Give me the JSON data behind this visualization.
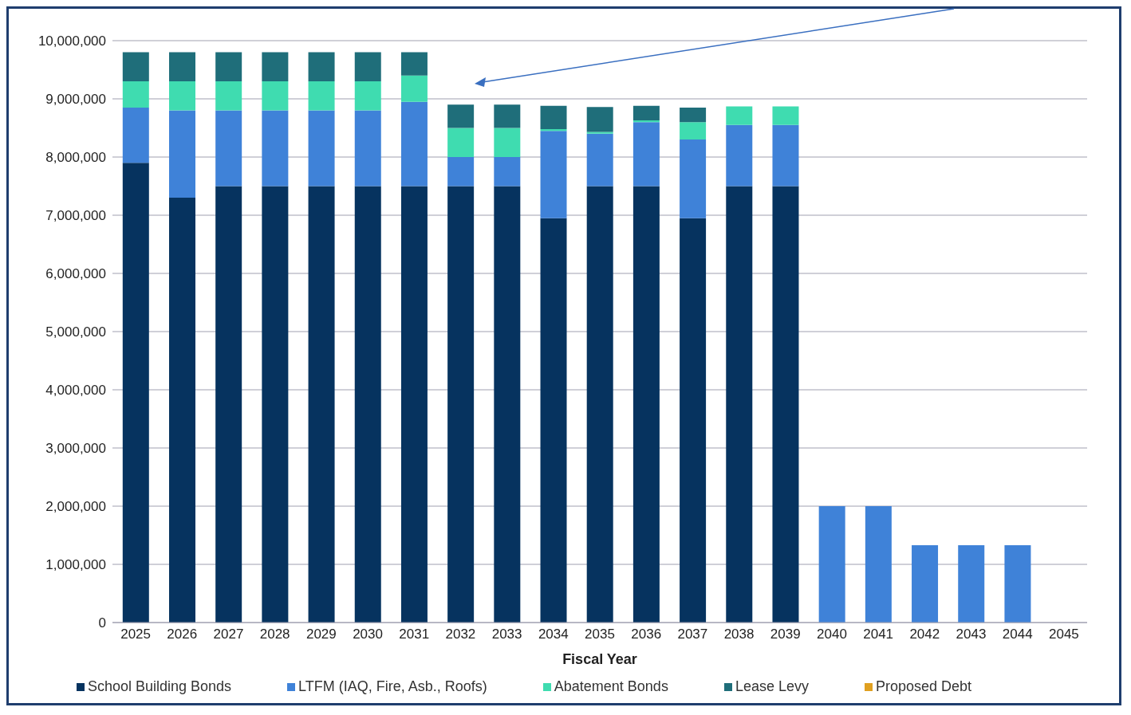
{
  "chart_data": {
    "type": "bar",
    "stacked": true,
    "xlabel": "Fiscal Year",
    "categories": [
      "2025",
      "2026",
      "2027",
      "2028",
      "2029",
      "2030",
      "2031",
      "2032",
      "2033",
      "2034",
      "2035",
      "2036",
      "2037",
      "2038",
      "2039",
      "2040",
      "2041",
      "2042",
      "2043",
      "2044",
      "2045"
    ],
    "series": [
      {
        "name": "School Building Bonds",
        "color": "#06335f",
        "values": [
          7900000,
          7300000,
          7500000,
          7500000,
          7500000,
          7500000,
          7500000,
          7500000,
          7500000,
          6950000,
          7500000,
          7500000,
          6950000,
          7500000,
          7500000,
          0,
          0,
          0,
          0,
          0,
          0
        ]
      },
      {
        "name": "LTFM (IAQ, Fire, Asb., Roofs)",
        "color": "#3f82d8",
        "values": [
          950000,
          1500000,
          1300000,
          1300000,
          1300000,
          1300000,
          1450000,
          500000,
          500000,
          1500000,
          900000,
          1100000,
          1350000,
          1050000,
          1050000,
          2000000,
          2000000,
          1330000,
          1330000,
          1330000,
          0
        ]
      },
      {
        "name": "Abatement Bonds",
        "color": "#3fdcb0",
        "values": [
          450000,
          500000,
          500000,
          500000,
          500000,
          500000,
          450000,
          500000,
          500000,
          30000,
          30000,
          30000,
          300000,
          320000,
          320000,
          0,
          0,
          0,
          0,
          0,
          0
        ]
      },
      {
        "name": "Lease Levy",
        "color": "#1f6e7a",
        "values": [
          500000,
          500000,
          500000,
          500000,
          500000,
          500000,
          400000,
          400000,
          400000,
          400000,
          430000,
          250000,
          250000,
          0,
          0,
          0,
          0,
          0,
          0,
          0,
          0
        ]
      },
      {
        "name": "Proposed Debt",
        "color": "#e0a020",
        "values": [
          0,
          0,
          0,
          0,
          0,
          0,
          0,
          0,
          0,
          0,
          0,
          0,
          0,
          0,
          0,
          0,
          0,
          0,
          0,
          0,
          0
        ]
      }
    ],
    "ylim": [
      0,
      10000000
    ],
    "yticks": [
      {
        "value": 0,
        "label": "0"
      },
      {
        "value": 1000000,
        "label": "1,000,000"
      },
      {
        "value": 2000000,
        "label": "2,000,000"
      },
      {
        "value": 3000000,
        "label": "3,000,000"
      },
      {
        "value": 4000000,
        "label": "4,000,000"
      },
      {
        "value": 5000000,
        "label": "5,000,000"
      },
      {
        "value": 6000000,
        "label": "6,000,000"
      },
      {
        "value": 7000000,
        "label": "7,000,000"
      },
      {
        "value": 8000000,
        "label": "8,000,000"
      },
      {
        "value": 9000000,
        "label": "9,000,000"
      },
      {
        "value": 10000000,
        "label": "10,000,000"
      }
    ],
    "grid": "y",
    "legend": "bottom"
  }
}
